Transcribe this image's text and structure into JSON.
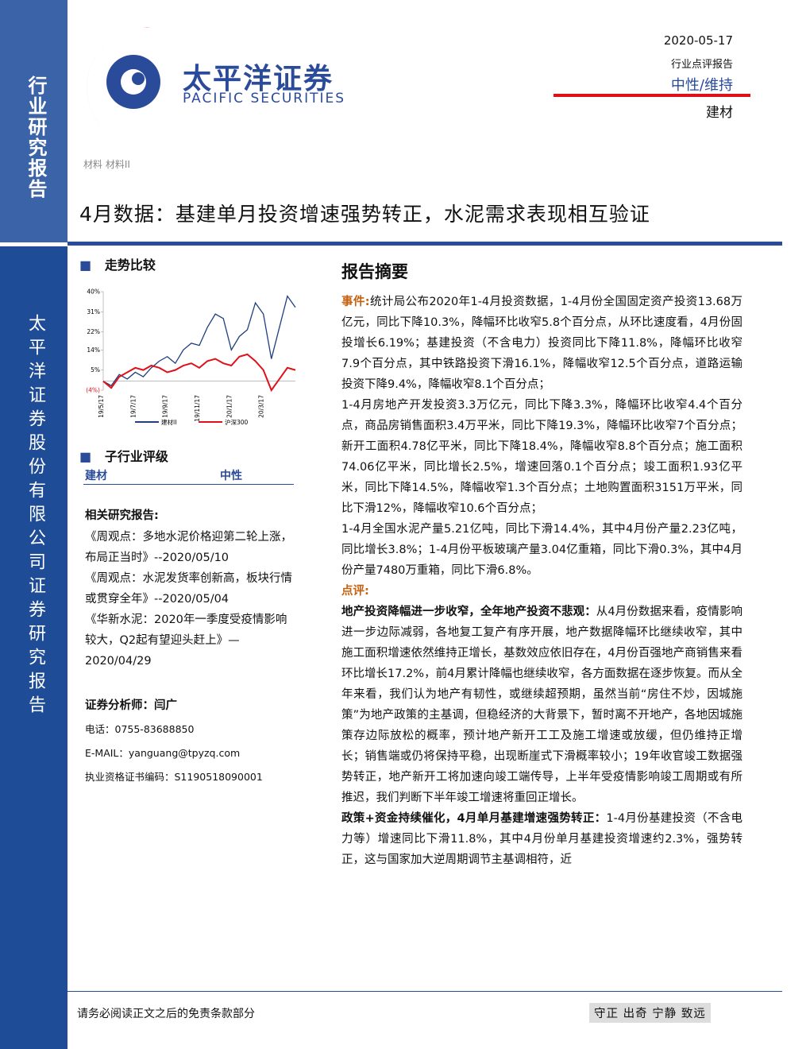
{
  "sidebar": {
    "top_label": "行业研究报告",
    "bottom_label": "太平洋证券股份有限公司证券研究报告"
  },
  "header": {
    "company_cn": "太平洋证券",
    "company_en": "PACIFIC SECURITIES",
    "date": "2020-05-17",
    "report_type": "行业点评报告",
    "rating": "中性/维持",
    "industry": "建材",
    "category": "材料 材料II"
  },
  "title": "4月数据：基建单月投资增速强势转正，水泥需求表现相互验证",
  "left": {
    "trend_heading": "走势比较",
    "rating_heading": "子行业评级",
    "rating_rows": [
      [
        "建材",
        "中性"
      ]
    ],
    "related_heading": "相关研究报告:",
    "related_reports": [
      "《周观点：多地水泥价格迎第二轮上涨，布局正当时》--2020/05/10",
      "《周观点：水泥发货率创新高，板块行情或贯穿全年》--2020/05/04",
      "《华新水泥：2020年一季度受疫情影响较大，Q2起有望迎头赶上》—2020/04/29"
    ],
    "analyst": "证券分析师：闫广",
    "phone": "电话：0755-83688850",
    "email": "E-MAIL：yanguang@tpyzq.com",
    "cert": "执业资格证书编码：S1190518090001"
  },
  "chart_data": {
    "type": "line",
    "categories": [
      "19/5/17",
      null,
      null,
      null,
      "19/7/17",
      null,
      null,
      null,
      "19/9/17",
      null,
      null,
      null,
      "19/11/17",
      null,
      null,
      null,
      "20/1/17",
      null,
      null,
      null,
      "20/3/17",
      null,
      null,
      null,
      null
    ],
    "series": [
      {
        "name": "建材II",
        "color": "#1f3f7f",
        "values": [
          0,
          -2,
          3,
          1,
          4,
          2,
          6,
          9,
          11,
          8,
          14,
          17,
          16,
          24,
          30,
          28,
          14,
          20,
          23,
          35,
          30,
          10,
          24,
          38,
          33
        ]
      },
      {
        "name": "沪深300",
        "color": "#e0101a",
        "values": [
          0,
          -3,
          2,
          4,
          6,
          5,
          7,
          6,
          4,
          5,
          7,
          8,
          6,
          9,
          10,
          8,
          7,
          11,
          12,
          9,
          5,
          -4,
          1,
          6,
          5
        ]
      }
    ],
    "ylim": [
      -4,
      40
    ],
    "yticks": [
      {
        "value": 40,
        "label": "40%"
      },
      {
        "value": 31,
        "label": "31%"
      },
      {
        "value": 22,
        "label": "22%"
      },
      {
        "value": 14,
        "label": "14%"
      },
      {
        "value": 5,
        "label": "5%"
      },
      {
        "value": -4,
        "label": "(4%)"
      }
    ]
  },
  "summary": {
    "heading": "报告摘要",
    "event_label": "事件:",
    "event_text": "统计局公布2020年1-4月投资数据，1-4月份全国固定资产投资13.68万亿元，同比下降10.3%，降幅环比收窄5.8个百分点，从环比速度看，4月份固投增长6.19%；基建投资（不含电力）投资同比下降11.8%，降幅环比收窄7.9个百分点，其中铁路投资下滑16.1%，降幅收窄12.5个百分点，道路运输投资下降9.4%，降幅收窄8.1个百分点；",
    "property_text": "1-4月房地产开发投资3.3万亿元，同比下降3.3%，降幅环比收窄4.4个百分点，商品房销售面积3.4万平米，同比下降19.3%，降幅环比收窄7个百分点；新开工面积4.78亿平米，同比下降18.4%，降幅收窄8.8个百分点；施工面积74.06亿平米，同比增长2.5%，增速回落0.1个百分点；竣工面积1.93亿平米，同比下降14.5%，降幅收窄1.3个百分点；土地购置面积3151万平米，同比下滑12%，降幅收窄10.6个百分点；",
    "cement_text": "1-4月全国水泥产量5.21亿吨，同比下滑14.4%，其中4月份产量2.23亿吨，同比增长3.8%；1-4月份平板玻璃产量3.04亿重箱，同比下滑0.3%，其中4月份产量7480万重箱，同比下滑6.8%。",
    "comment_label": "点评:",
    "points": [
      {
        "lead": "地产投资降幅进一步收窄，全年地产投资不悲观：",
        "text": "从4月份数据来看，疫情影响进一步边际减弱，各地复工复产有序开展，地产数据降幅环比继续收窄，其中施工面积增速依然维持正增长，基数效应依旧存在，4月份百强地产商销售来看环比增长17.2%，前4月累计降幅也继续收窄，各方面数据在逐步恢复。而从全年来看，我们认为地产有韧性，或继续超预期，虽然当前“房住不炒，因城施策”为地产政策的主基调，但稳经济的大背景下，暂时离不开地产，各地因城施策存边际放松的概率，预计地产新开工工及施工增速或放缓，但仍维持正增长；销售端或仍将保持平稳，出现断崖式下滑概率较小；19年收官竣工数据强势转正，地产新开工将加速向竣工端传导，上半年受疫情影响竣工周期或有所推迟，我们判断下半年竣工增速将重回正增长。"
      },
      {
        "lead": "政策+资金持续催化，4月单月基建增速强势转正：",
        "text": "1-4月份基建投资（不含电力等）增速同比下滑11.8%，其中4月份单月基建投资增速约2.3%，强势转正，这与国家加大逆周期调节主基调相符，近"
      }
    ]
  },
  "footer": {
    "disclaimer": "请务必阅读正文之后的免责条款部分",
    "motto": "守正 出奇 宁静 致远"
  }
}
